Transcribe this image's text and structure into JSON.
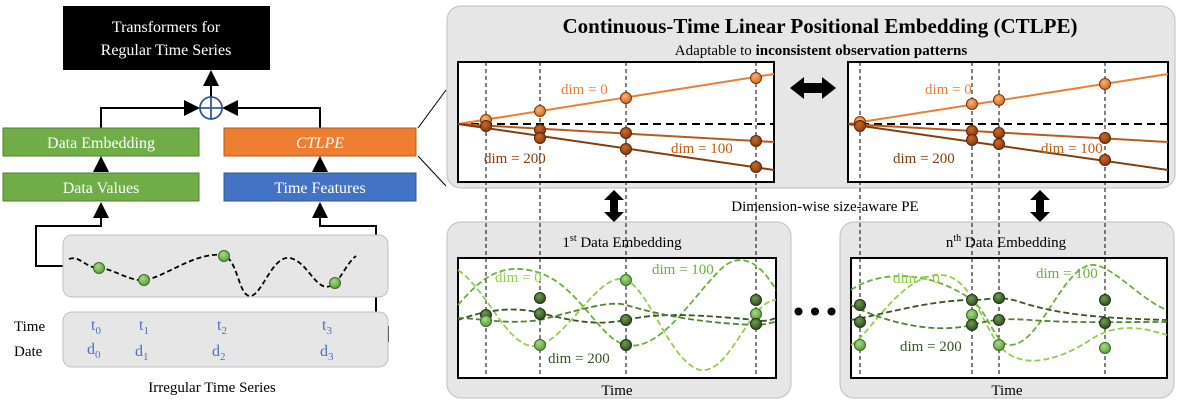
{
  "left": {
    "output_title_line1": "Transformers for",
    "output_title_line2": "Regular Time Series",
    "data_embedding_label": "Data Embedding",
    "ctlpe_label": "CTLPE",
    "data_values_label": "Data Values",
    "time_features_label": "Time Features",
    "row_time_label": "Time",
    "row_date_label": "Date",
    "t_labels": [
      "t",
      "t",
      "t",
      "t"
    ],
    "d_labels": [
      "d",
      "d",
      "d",
      "d"
    ],
    "subscripts": [
      "0",
      "1",
      "2",
      "3"
    ],
    "caption": "Irregular Time Series"
  },
  "right": {
    "title": "Continuous-Time Linear Positional Embedding (CTLPE)",
    "subtitle_prefix": "Adaptable to ",
    "subtitle_bold": "inconsistent observation patterns",
    "middle_label": "Dimension-wise size-aware PE",
    "first_embedding_sup": "st",
    "first_embedding_num": "1",
    "nth_embedding_num": "n",
    "nth_embedding_sup": "th",
    "embedding_label": " Data Embedding",
    "ellipsis": "•••",
    "time_axis_label": "Time"
  },
  "labels": {
    "dim0": "dim = 0",
    "dim100": "dim = 100",
    "dim200": "dim = 200"
  },
  "colors": {
    "orange": "#ed7d31",
    "brown": "#a0460e",
    "dark_brown": "#843c0c",
    "green_box": "#70ad47",
    "blue_box": "#4472c4",
    "light_green": "#8fcf4a",
    "mid_green": "#548235",
    "dark_green": "#375623",
    "panel_gray": "#e7e6e6",
    "text_blue": "#4472c4"
  }
}
